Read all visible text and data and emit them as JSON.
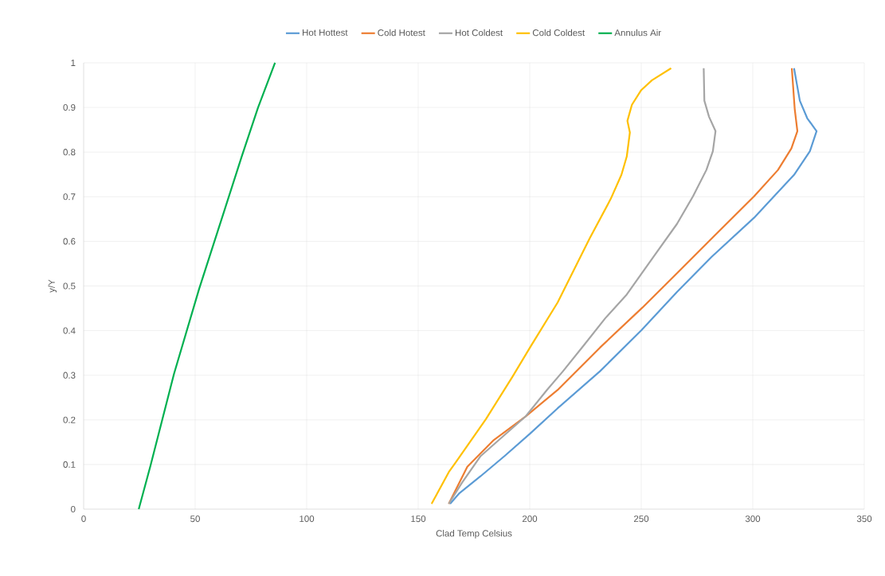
{
  "chart_data": {
    "type": "line",
    "xlabel": "Clad Temp Celsius",
    "ylabel": "y/Y",
    "xlim": [
      0,
      350
    ],
    "xticks": [
      0,
      50,
      100,
      150,
      200,
      250,
      300,
      350
    ],
    "ylim": [
      0,
      1
    ],
    "yticks": [
      0,
      0.1,
      0.2,
      0.3,
      0.4,
      0.5,
      0.6,
      0.7,
      0.8,
      0.9,
      1
    ],
    "grid": true,
    "legend": "top",
    "marker": "none",
    "line_style": "solid",
    "series": [
      {
        "name": "Hot Hottest",
        "color": "#5b9bd5",
        "x": [
          164.3,
          168.5,
          178,
          188.7,
          200.1,
          212.5,
          231.5,
          250.1,
          266.1,
          281.5,
          300.6,
          318.5,
          325.6,
          328.6,
          324.4,
          321.1,
          318.5
        ],
        "values": [
          0.012,
          0.036,
          0.074,
          0.119,
          0.169,
          0.226,
          0.309,
          0.401,
          0.487,
          0.565,
          0.653,
          0.749,
          0.802,
          0.847,
          0.876,
          0.915,
          0.988
        ]
      },
      {
        "name": "Cold Hotest",
        "color": "#ed7d31",
        "x": [
          163.7,
          172,
          183.9,
          198.2,
          212.5,
          231.5,
          250.6,
          266.1,
          281.5,
          300.6,
          311.3,
          317.3,
          320,
          318.8,
          317.5
        ],
        "values": [
          0.012,
          0.095,
          0.155,
          0.208,
          0.267,
          0.362,
          0.452,
          0.529,
          0.606,
          0.701,
          0.76,
          0.808,
          0.847,
          0.897,
          0.988
        ]
      },
      {
        "name": "Hot Coldest",
        "color": "#a5a5a5",
        "x": [
          163.7,
          169.6,
          178,
          198.2,
          207.7,
          214.9,
          224.4,
          233.9,
          243.5,
          255.4,
          266,
          273.2,
          279.2,
          282.1,
          283.3,
          280.4,
          278.3,
          278
        ],
        "values": [
          0.012,
          0.059,
          0.119,
          0.208,
          0.267,
          0.309,
          0.368,
          0.428,
          0.481,
          0.565,
          0.639,
          0.701,
          0.76,
          0.802,
          0.847,
          0.879,
          0.915,
          0.988
        ]
      },
      {
        "name": "Cold Coldest",
        "color": "#ffc000",
        "x": [
          156,
          163.7,
          166.7,
          180.4,
          192.3,
          200.1,
          212.5,
          226.8,
          236.3,
          241.1,
          243.5,
          244.9,
          243.8,
          245.8,
          250,
          254.8,
          263.4
        ],
        "values": [
          0.012,
          0.083,
          0.104,
          0.202,
          0.297,
          0.362,
          0.463,
          0.606,
          0.695,
          0.749,
          0.79,
          0.844,
          0.87,
          0.906,
          0.939,
          0.961,
          0.988
        ]
      },
      {
        "name": "Annulus Air",
        "color": "#00b050",
        "x": [
          24.7,
          30,
          40.5,
          51.8,
          59.1,
          71,
          78.2,
          85.8
        ],
        "values": [
          0,
          0.098,
          0.303,
          0.494,
          0.607,
          0.792,
          0.9,
          1
        ]
      }
    ]
  }
}
